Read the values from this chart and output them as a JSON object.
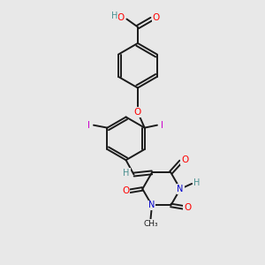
{
  "bg_color": "#e8e8e8",
  "bond_color": "#1a1a1a",
  "bond_width": 1.4,
  "atom_colors": {
    "O": "#ff0000",
    "N": "#0000cc",
    "I": "#cc00cc",
    "H": "#4a9090",
    "C": "#1a1a1a"
  },
  "figsize": [
    3.0,
    3.0
  ],
  "dpi": 100,
  "xlim": [
    0,
    10
  ],
  "ylim": [
    0,
    10
  ]
}
